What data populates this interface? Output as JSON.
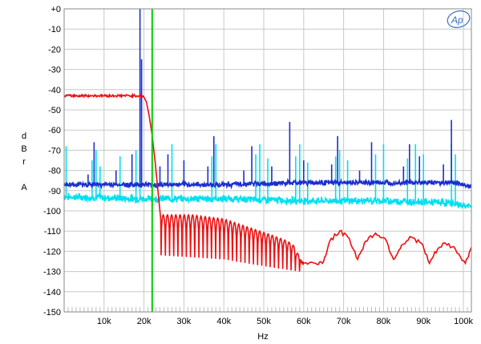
{
  "chart_data": {
    "type": "line",
    "title": "",
    "xlabel": "Hz",
    "ylabel_lines": [
      "d",
      "B",
      "r",
      "",
      "A"
    ],
    "xlim": [
      0,
      102000
    ],
    "ylim": [
      -150,
      0
    ],
    "grid": true,
    "legend": "none",
    "x_ticks": [
      {
        "value": 10000,
        "label": "10k"
      },
      {
        "value": 20000,
        "label": "20k"
      },
      {
        "value": 30000,
        "label": "30k"
      },
      {
        "value": 40000,
        "label": "40k"
      },
      {
        "value": 50000,
        "label": "50k"
      },
      {
        "value": 60000,
        "label": "60k"
      },
      {
        "value": 70000,
        "label": "70k"
      },
      {
        "value": 80000,
        "label": "80k"
      },
      {
        "value": 90000,
        "label": "90k"
      },
      {
        "value": 100000,
        "label": "100k"
      }
    ],
    "y_ticks": [
      {
        "value": 0,
        "label": "+0"
      },
      {
        "value": -10,
        "label": "-10"
      },
      {
        "value": -20,
        "label": "-20"
      },
      {
        "value": -30,
        "label": "-30"
      },
      {
        "value": -40,
        "label": "-40"
      },
      {
        "value": -50,
        "label": "-50"
      },
      {
        "value": -60,
        "label": "-60"
      },
      {
        "value": -70,
        "label": "-70"
      },
      {
        "value": -80,
        "label": "-80"
      },
      {
        "value": -90,
        "label": "-90"
      },
      {
        "value": -100,
        "label": "-100"
      },
      {
        "value": -110,
        "label": "-110"
      },
      {
        "value": -120,
        "label": "-120"
      },
      {
        "value": -130,
        "label": "-130"
      },
      {
        "value": -140,
        "label": "-140"
      },
      {
        "value": -150,
        "label": "-150"
      }
    ],
    "markers": [
      {
        "x": 22050,
        "color": "#00cc00"
      }
    ],
    "series": [
      {
        "color": "#00e0f0",
        "floor": [
          [
            0,
            -93
          ],
          [
            20000,
            -94
          ],
          [
            40000,
            -94
          ],
          [
            60000,
            -95
          ],
          [
            80000,
            -95
          ],
          [
            96000,
            -96
          ],
          [
            102000,
            -98
          ]
        ],
        "spikes": [
          [
            500,
            -68
          ],
          [
            7000,
            -75
          ],
          [
            8000,
            -70
          ],
          [
            9000,
            -78
          ],
          [
            14000,
            -73
          ],
          [
            18000,
            -70
          ],
          [
            19000,
            -75
          ],
          [
            27000,
            -67
          ],
          [
            37000,
            -73
          ],
          [
            38000,
            -67
          ],
          [
            48000,
            -72
          ],
          [
            49000,
            -67
          ],
          [
            51000,
            -74
          ],
          [
            58000,
            -73
          ],
          [
            59000,
            -67
          ],
          [
            61000,
            -76
          ],
          [
            68000,
            -73
          ],
          [
            69000,
            -70
          ],
          [
            71000,
            -75
          ],
          [
            78000,
            -72
          ],
          [
            80000,
            -67
          ],
          [
            86000,
            -74
          ],
          [
            88000,
            -67
          ],
          [
            90000,
            -72
          ],
          [
            97000,
            -67
          ],
          [
            98000,
            -72
          ]
        ]
      },
      {
        "color": "#1a2fd0",
        "floor": [
          [
            0,
            -87
          ],
          [
            20000,
            -87
          ],
          [
            40000,
            -87
          ],
          [
            60000,
            -86
          ],
          [
            80000,
            -86
          ],
          [
            98000,
            -86
          ],
          [
            102000,
            -88
          ]
        ],
        "spikes": [
          [
            6000,
            -82
          ],
          [
            7500,
            -66
          ],
          [
            13000,
            -80
          ],
          [
            17000,
            -72
          ],
          [
            19000,
            0
          ],
          [
            19400,
            -25
          ],
          [
            24000,
            -78
          ],
          [
            26000,
            -72
          ],
          [
            30000,
            -75
          ],
          [
            36000,
            -78
          ],
          [
            37500,
            -63
          ],
          [
            45000,
            -80
          ],
          [
            47000,
            -68
          ],
          [
            52000,
            -78
          ],
          [
            56500,
            -56
          ],
          [
            60000,
            -75
          ],
          [
            67000,
            -77
          ],
          [
            68500,
            -63
          ],
          [
            74000,
            -80
          ],
          [
            77000,
            -66
          ],
          [
            85000,
            -78
          ],
          [
            86500,
            -67
          ],
          [
            89000,
            -73
          ],
          [
            95000,
            -77
          ],
          [
            97000,
            -55
          ]
        ]
      },
      {
        "color": "#ee1010",
        "passband": [
          [
            0,
            -43
          ],
          [
            19800,
            -43
          ]
        ],
        "rolloff": [
          [
            19800,
            -43
          ],
          [
            20600,
            -46
          ],
          [
            21300,
            -53
          ],
          [
            22000,
            -62
          ],
          [
            22800,
            -76
          ],
          [
            23600,
            -92
          ],
          [
            24200,
            -104
          ]
        ],
        "lobe_envelope": [
          [
            24300,
            -102
          ],
          [
            32000,
            -102
          ],
          [
            40000,
            -104
          ],
          [
            46000,
            -108
          ],
          [
            52000,
            -112
          ],
          [
            56000,
            -115
          ],
          [
            58000,
            -118
          ],
          [
            59000,
            -125
          ]
        ],
        "lobe_depth": [
          [
            24300,
            -122
          ],
          [
            40000,
            -124
          ],
          [
            52000,
            -128
          ],
          [
            59000,
            -130
          ]
        ],
        "tail": [
          [
            59000,
            -124
          ],
          [
            60000,
            -126
          ],
          [
            63000,
            -126
          ],
          [
            65000,
            -125
          ],
          [
            66500,
            -115
          ],
          [
            69000,
            -110
          ],
          [
            71500,
            -114
          ],
          [
            73500,
            -124
          ],
          [
            75500,
            -115
          ],
          [
            78000,
            -111
          ],
          [
            80500,
            -114
          ],
          [
            82500,
            -124
          ],
          [
            84500,
            -117
          ],
          [
            87000,
            -113
          ],
          [
            89500,
            -116
          ],
          [
            91500,
            -126
          ],
          [
            93500,
            -119
          ],
          [
            95500,
            -116
          ],
          [
            98000,
            -119
          ],
          [
            100500,
            -126
          ],
          [
            102000,
            -118
          ]
        ]
      }
    ]
  }
}
